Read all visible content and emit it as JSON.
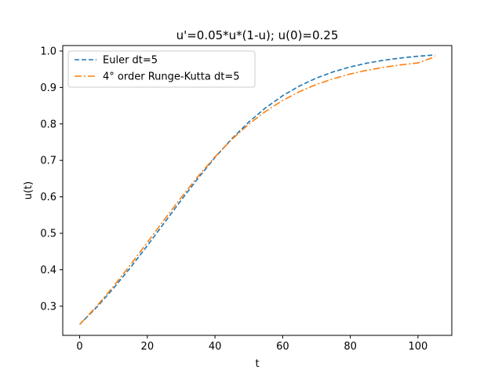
{
  "chart_data": {
    "type": "line",
    "title": "u'=0.05*u*(1-u); u(0)=0.25",
    "xlabel": "t",
    "ylabel": "u(t)",
    "xlim": [
      -5,
      110
    ],
    "ylim": [
      0.22,
      1.015
    ],
    "xticks": [
      0,
      20,
      40,
      60,
      80,
      100
    ],
    "yticks": [
      0.3,
      0.4,
      0.5,
      0.6,
      0.7,
      0.8,
      0.9,
      1.0
    ],
    "ytick_labels": [
      "0.3",
      "0.4",
      "0.5",
      "0.6",
      "0.7",
      "0.8",
      "0.9",
      "1.0"
    ],
    "grid": false,
    "legend": "upper-left",
    "series": [
      {
        "name": "Euler dt=5",
        "color": "#1f77b4",
        "linestyle": "dashed",
        "x": [
          0,
          5,
          10,
          15,
          20,
          25,
          30,
          35,
          40,
          45,
          50,
          55,
          60,
          65,
          70,
          75,
          80,
          85,
          90,
          95,
          100,
          105
        ],
        "y": [
          0.25,
          0.2969,
          0.3491,
          0.4059,
          0.4662,
          0.5284,
          0.5907,
          0.6512,
          0.708,
          0.7597,
          0.8053,
          0.8445,
          0.8773,
          0.9043,
          0.9259,
          0.943,
          0.9565,
          0.9669,
          0.9749,
          0.981,
          0.9857,
          0.9892
        ]
      },
      {
        "name": "4° order Runge-Kutta dt=5",
        "color": "#ff7f0e",
        "linestyle": "dashdot",
        "x": [
          0,
          5,
          10,
          15,
          20,
          25,
          30,
          35,
          40,
          45,
          50,
          55,
          60,
          65,
          70,
          75,
          80,
          85,
          90,
          95,
          100,
          105
        ],
        "y": [
          0.25,
          0.2998,
          0.3547,
          0.4136,
          0.475,
          0.5373,
          0.5983,
          0.6563,
          0.7097,
          0.7576,
          0.7994,
          0.8348,
          0.8644,
          0.8887,
          0.9084,
          0.9241,
          0.9371,
          0.9473,
          0.9555,
          0.9621,
          0.9674,
          0.9843
        ]
      }
    ]
  }
}
